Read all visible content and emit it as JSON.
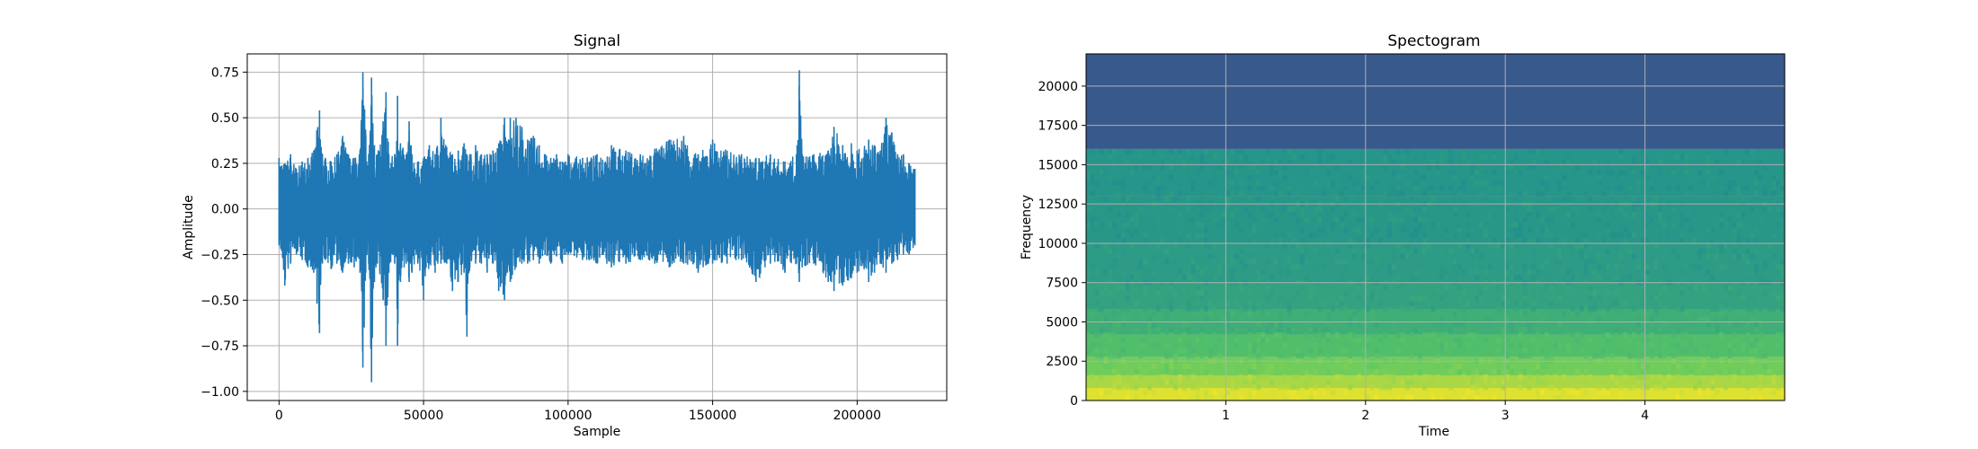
{
  "chart_data": [
    {
      "type": "line",
      "title": "Signal",
      "xlabel": "Sample",
      "ylabel": "Amplitude",
      "xlim": [
        -11000,
        231000
      ],
      "ylim": [
        -1.05,
        0.85
      ],
      "xticks": [
        0,
        50000,
        100000,
        150000,
        200000
      ],
      "xtick_labels": [
        "0",
        "50000",
        "100000",
        "150000",
        "200000"
      ],
      "yticks": [
        0.75,
        0.5,
        0.25,
        0.0,
        -0.25,
        -0.5,
        -0.75,
        -1.0
      ],
      "ytick_labels": [
        "0.75",
        "0.50",
        "0.25",
        "0.00",
        "−0.25",
        "−0.50",
        "−0.75",
        "−1.00"
      ],
      "grid": true,
      "line_color": "#1f77b4",
      "series": [
        {
          "x": [
            0,
            2000,
            4000,
            6000,
            8000,
            10000,
            12000,
            14000,
            15000,
            16000,
            18000,
            20000,
            22000,
            24000,
            26000,
            28000,
            29000,
            30000,
            31000,
            32000,
            33000,
            34000,
            36000,
            37000,
            38000,
            40000,
            41000,
            42000,
            44000,
            45000,
            46000,
            48000,
            50000,
            52000,
            54000,
            56000,
            58000,
            60000,
            62000,
            64000,
            65000,
            66000,
            68000,
            70000,
            72000,
            74000,
            76000,
            78000,
            79000,
            80000,
            82000,
            84000,
            86000,
            88000,
            90000,
            92000,
            94000,
            96000,
            98000,
            100000,
            105000,
            110000,
            115000,
            120000,
            125000,
            130000,
            135000,
            140000,
            145000,
            150000,
            155000,
            160000,
            165000,
            170000,
            175000,
            179000,
            180000,
            181000,
            185000,
            190000,
            192000,
            195000,
            198000,
            200000,
            204000,
            206000,
            208000,
            210000,
            212000,
            214000,
            216000,
            218000,
            220000
          ],
          "ymax": [
            0.28,
            0.25,
            0.3,
            0.22,
            0.26,
            0.28,
            0.32,
            0.54,
            0.3,
            0.28,
            0.26,
            0.3,
            0.4,
            0.3,
            0.28,
            0.32,
            0.75,
            0.4,
            0.3,
            0.72,
            0.35,
            0.3,
            0.48,
            0.64,
            0.3,
            0.3,
            0.62,
            0.36,
            0.3,
            0.48,
            0.3,
            0.26,
            0.28,
            0.35,
            0.3,
            0.5,
            0.34,
            0.3,
            0.32,
            0.36,
            0.3,
            0.3,
            0.35,
            0.3,
            0.3,
            0.32,
            0.36,
            0.5,
            0.36,
            0.5,
            0.5,
            0.45,
            0.38,
            0.4,
            0.35,
            0.3,
            0.28,
            0.3,
            0.26,
            0.3,
            0.28,
            0.3,
            0.35,
            0.32,
            0.3,
            0.33,
            0.38,
            0.4,
            0.3,
            0.38,
            0.32,
            0.3,
            0.28,
            0.3,
            0.26,
            0.3,
            0.76,
            0.3,
            0.3,
            0.32,
            0.45,
            0.35,
            0.36,
            0.32,
            0.38,
            0.35,
            0.32,
            0.5,
            0.42,
            0.3,
            0.3,
            0.25,
            0.22
          ],
          "ymin": [
            -0.2,
            -0.42,
            -0.3,
            -0.25,
            -0.28,
            -0.32,
            -0.35,
            -0.68,
            -0.3,
            -0.28,
            -0.33,
            -0.3,
            -0.35,
            -0.3,
            -0.32,
            -0.35,
            -0.87,
            -0.35,
            -0.3,
            -0.95,
            -0.4,
            -0.3,
            -0.5,
            -0.75,
            -0.35,
            -0.3,
            -0.75,
            -0.4,
            -0.3,
            -0.4,
            -0.35,
            -0.3,
            -0.5,
            -0.3,
            -0.35,
            -0.3,
            -0.3,
            -0.45,
            -0.4,
            -0.35,
            -0.7,
            -0.32,
            -0.3,
            -0.3,
            -0.35,
            -0.3,
            -0.45,
            -0.5,
            -0.35,
            -0.4,
            -0.32,
            -0.3,
            -0.3,
            -0.28,
            -0.3,
            -0.25,
            -0.3,
            -0.26,
            -0.3,
            -0.25,
            -0.28,
            -0.3,
            -0.32,
            -0.3,
            -0.28,
            -0.3,
            -0.32,
            -0.3,
            -0.35,
            -0.3,
            -0.3,
            -0.28,
            -0.4,
            -0.3,
            -0.35,
            -0.3,
            -0.4,
            -0.32,
            -0.3,
            -0.4,
            -0.45,
            -0.42,
            -0.38,
            -0.35,
            -0.4,
            -0.35,
            -0.3,
            -0.35,
            -0.3,
            -0.28,
            -0.25,
            -0.25,
            -0.2
          ]
        }
      ]
    },
    {
      "type": "heatmap",
      "title": "Spectogram",
      "xlabel": "Time",
      "ylabel": "Frequency",
      "xlim": [
        0.0,
        5.0
      ],
      "ylim": [
        0,
        22050
      ],
      "xticks": [
        1,
        2,
        3,
        4
      ],
      "xtick_labels": [
        "1",
        "2",
        "3",
        "4"
      ],
      "yticks": [
        0,
        2500,
        5000,
        7500,
        10000,
        12500,
        15000,
        17500,
        20000
      ],
      "ytick_labels": [
        "0",
        "2500",
        "5000",
        "7500",
        "10000",
        "12500",
        "15000",
        "17500",
        "20000"
      ],
      "grid": true,
      "colormap": "viridis",
      "colormap_stops": [
        "#440154",
        "#3b528b",
        "#21908d",
        "#5dc963",
        "#fde725"
      ],
      "frequency_bands": [
        {
          "from": 0,
          "to": 800,
          "intensity": 0.95
        },
        {
          "from": 800,
          "to": 1600,
          "intensity": 0.87
        },
        {
          "from": 1600,
          "to": 2800,
          "intensity": 0.78
        },
        {
          "from": 2800,
          "to": 4200,
          "intensity": 0.7
        },
        {
          "from": 4200,
          "to": 5800,
          "intensity": 0.63
        },
        {
          "from": 5800,
          "to": 7500,
          "intensity": 0.58
        },
        {
          "from": 7500,
          "to": 10000,
          "intensity": 0.55
        },
        {
          "from": 10000,
          "to": 13000,
          "intensity": 0.53
        },
        {
          "from": 13000,
          "to": 16000,
          "intensity": 0.52
        },
        {
          "from": 16000,
          "to": 22050,
          "intensity": 0.28
        }
      ]
    }
  ]
}
